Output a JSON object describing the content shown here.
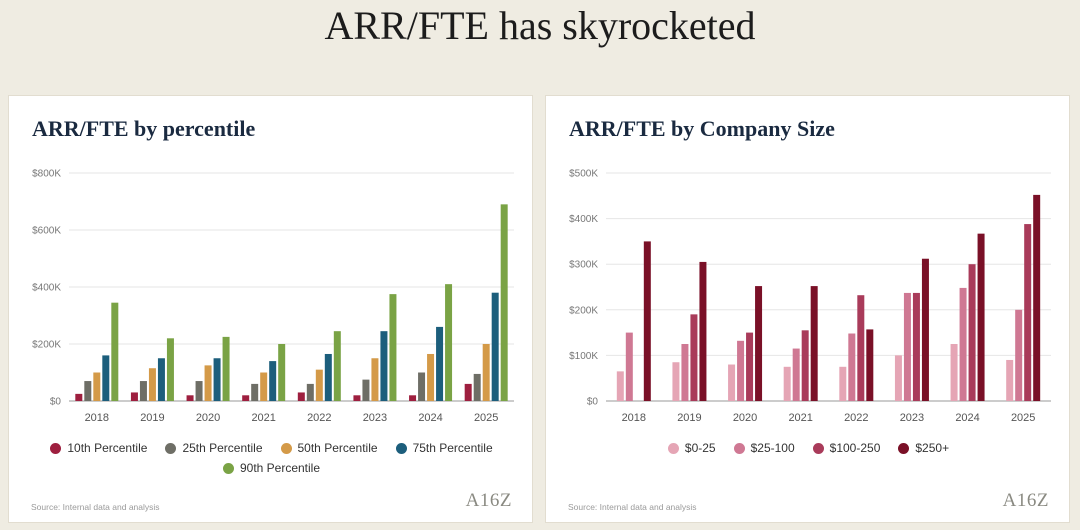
{
  "page_title": "ARR/FTE has skyrocketed",
  "source_text": "Source: Internal data and analysis",
  "logo_text": "A16Z",
  "chart_data": [
    {
      "type": "bar",
      "title": "ARR/FTE by percentile",
      "categories": [
        "2018",
        "2019",
        "2020",
        "2021",
        "2022",
        "2023",
        "2024",
        "2025"
      ],
      "ylim": [
        0,
        800000
      ],
      "yticks": [
        0,
        200000,
        400000,
        600000,
        800000
      ],
      "ytick_labels": [
        "$0",
        "$200K",
        "$400K",
        "$600K",
        "$800K"
      ],
      "grid": true,
      "legend_position": "bottom",
      "series": [
        {
          "name": "10th Percentile",
          "color": "#9e1f3f",
          "values": [
            25000,
            30000,
            20000,
            20000,
            30000,
            20000,
            20000,
            60000
          ]
        },
        {
          "name": "25th Percentile",
          "color": "#6e6e66",
          "values": [
            70000,
            70000,
            70000,
            60000,
            60000,
            75000,
            100000,
            95000
          ]
        },
        {
          "name": "50th Percentile",
          "color": "#d49a48",
          "values": [
            100000,
            115000,
            125000,
            100000,
            110000,
            150000,
            165000,
            200000
          ]
        },
        {
          "name": "75th Percentile",
          "color": "#1c5e7c",
          "values": [
            160000,
            150000,
            150000,
            140000,
            165000,
            245000,
            260000,
            380000
          ]
        },
        {
          "name": "90th Percentile",
          "color": "#7aa345",
          "values": [
            345000,
            220000,
            225000,
            200000,
            245000,
            375000,
            410000,
            690000
          ]
        }
      ]
    },
    {
      "type": "bar",
      "title": "ARR/FTE by Company Size",
      "categories": [
        "2018",
        "2019",
        "2020",
        "2021",
        "2022",
        "2023",
        "2024",
        "2025"
      ],
      "ylim": [
        0,
        500000
      ],
      "yticks": [
        0,
        100000,
        200000,
        300000,
        400000,
        500000
      ],
      "ytick_labels": [
        "$0",
        "$100K",
        "$200K",
        "$300K",
        "$400K",
        "$500K"
      ],
      "grid": true,
      "legend_position": "bottom",
      "series": [
        {
          "name": "$0-25",
          "color": "#e5a5b5",
          "values": [
            65000,
            85000,
            80000,
            75000,
            75000,
            100000,
            125000,
            90000
          ]
        },
        {
          "name": "$25-100",
          "color": "#cf7893",
          "values": [
            150000,
            125000,
            132000,
            115000,
            148000,
            237000,
            248000,
            200000
          ]
        },
        {
          "name": "$100-250",
          "color": "#a93b5a",
          "values": [
            0,
            190000,
            150000,
            155000,
            232000,
            237000,
            300000,
            388000
          ]
        },
        {
          "name": "$250+",
          "color": "#7a1027",
          "values": [
            350000,
            305000,
            252000,
            252000,
            157000,
            312000,
            367000,
            452000
          ]
        }
      ]
    }
  ]
}
